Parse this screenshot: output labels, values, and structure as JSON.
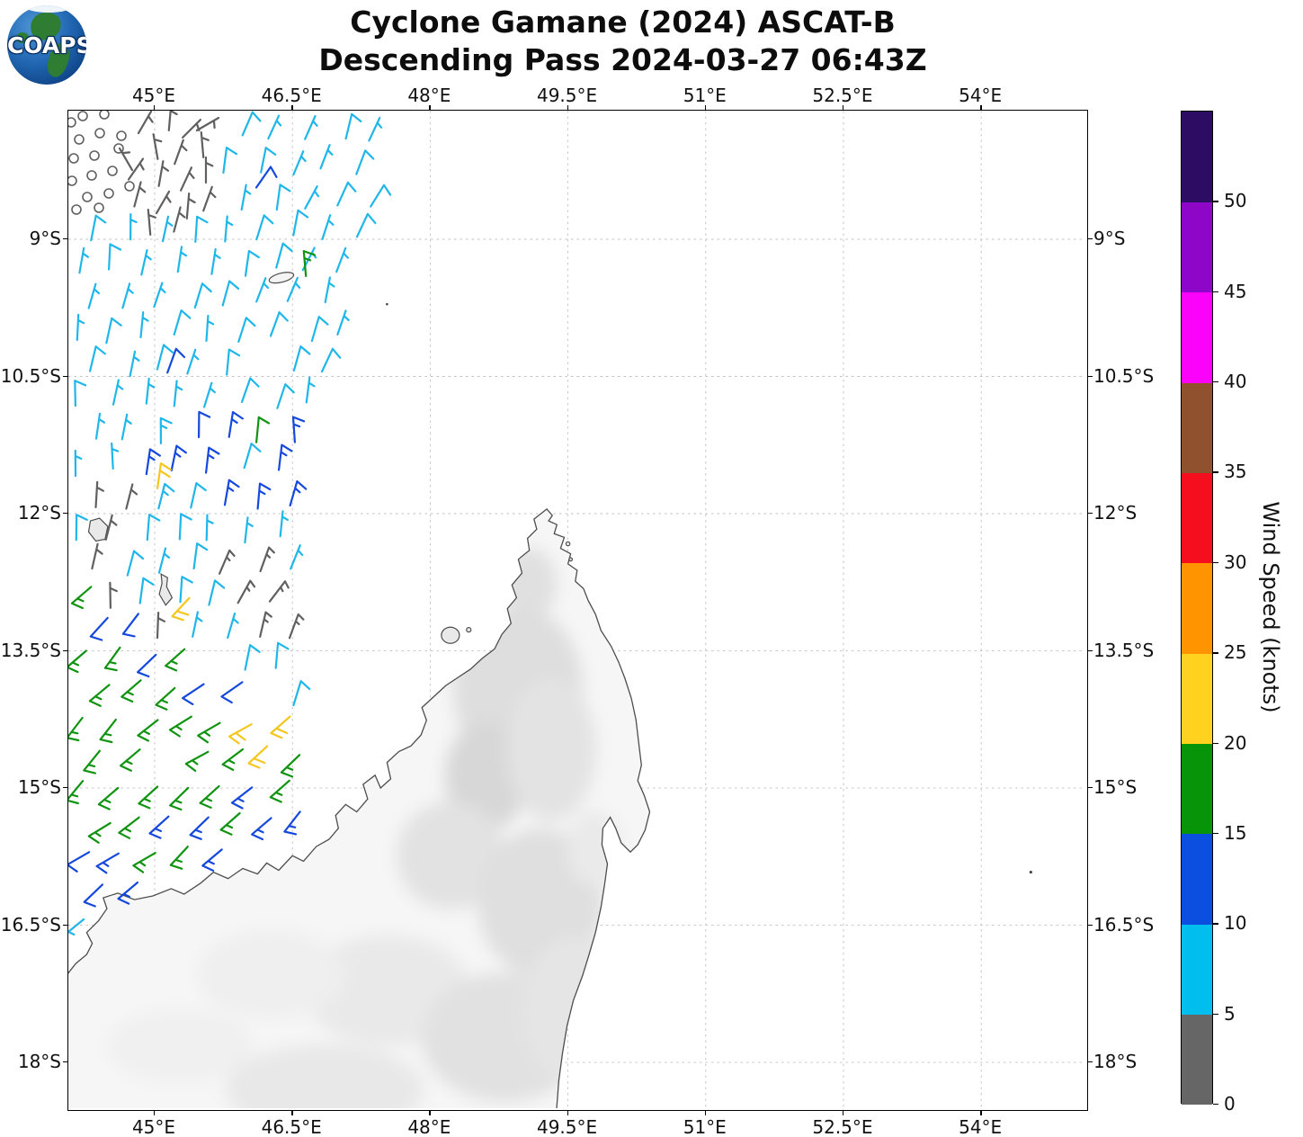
{
  "header": {
    "title_line1": "Cyclone Gamane (2024) ASCAT-B",
    "title_line2": "Descending Pass 2024-03-27 06:43Z",
    "logo_text": "COAPS"
  },
  "axes": {
    "x_tick_labels": [
      "45°E",
      "46.5°E",
      "48°E",
      "49.5°E",
      "51°E",
      "52.5°E",
      "54°E"
    ],
    "y_tick_labels": [
      "9°S",
      "10.5°S",
      "12°S",
      "13.5°S",
      "15°S",
      "16.5°S",
      "18°S"
    ],
    "x_tick_lons": [
      45,
      46.5,
      48,
      49.5,
      51,
      52.5,
      54
    ],
    "y_tick_lats": [
      -9,
      -10.5,
      -12,
      -13.5,
      -15,
      -16.5,
      -18
    ],
    "lon_range": [
      44.06,
      55.16
    ],
    "lat_range": [
      -18.55,
      -7.59
    ]
  },
  "colorbar": {
    "label": "Wind Speed (knots)",
    "tick_values": [
      0,
      5,
      10,
      15,
      20,
      25,
      30,
      35,
      40,
      45,
      50
    ],
    "segments": [
      {
        "range_kt": "0-5",
        "color": "#666666"
      },
      {
        "range_kt": "5-10",
        "color": "#00bfef"
      },
      {
        "range_kt": "10-15",
        "color": "#0b4fe0"
      },
      {
        "range_kt": "15-20",
        "color": "#089408"
      },
      {
        "range_kt": "20-25",
        "color": "#ffd21f"
      },
      {
        "range_kt": "25-30",
        "color": "#ff9400"
      },
      {
        "range_kt": "30-35",
        "color": "#f50f1e"
      },
      {
        "range_kt": "35-40",
        "color": "#90512f"
      },
      {
        "range_kt": "40-45",
        "color": "#fb02fb"
      },
      {
        "range_kt": "45-50",
        "color": "#8e06c8"
      },
      {
        "range_kt": ">50",
        "color": "#2d0c63"
      }
    ]
  },
  "chart_data": {
    "type": "wind_barb_map",
    "title": "Cyclone Gamane (2024) ASCAT-B",
    "subtitle": "Descending Pass 2024-03-27 06:43Z",
    "satellite": "ASCAT-B",
    "pass_type": "Descending",
    "valid_time": "2024-03-27 06:43Z",
    "region": "Madagascar and Mozambique Channel",
    "lon_ticks_deg_e": [
      45,
      46.5,
      48,
      49.5,
      51,
      52.5,
      54
    ],
    "lat_ticks_deg_s": [
      9,
      10.5,
      12,
      13.5,
      15,
      16.5,
      18
    ],
    "wind_speed_units": "knots",
    "speed_bins_kt": [
      0,
      5,
      10,
      15,
      20,
      25,
      30,
      35,
      40,
      45,
      50
    ],
    "swath_coverage": "satellite swath covers only the north-west part of the map (~44.1-46.6 deg E, narrowing southward, 8-17 deg S); no wind data over land or the eastern ocean",
    "wind_field_regions": [
      {
        "area": "8-12 deg S, west of ~46.6E",
        "speed_kt": "5-10",
        "wind_from": "N-NNE",
        "barb_color": "#00bfef"
      },
      {
        "area": "top-left corner ~8-9.2 deg S",
        "speed_kt": "0-5 calm (open circles and gray barbs)",
        "wind_from": "variable",
        "barb_color": "#666666"
      },
      {
        "area": "11.2-12.4 deg S, 44.8-46.6E",
        "speed_kt": "10-20, isolated 20-25",
        "wind_from": "N",
        "barb_color": "#0b4fe0"
      },
      {
        "area": "band near 12-12.8 deg S along swath edge",
        "speed_kt": "0-5",
        "wind_from": "variable",
        "barb_color": "#666666"
      },
      {
        "area": "13-16 deg S, west of 46.6E",
        "speed_kt": "15-20, isolated 20-25",
        "wind_from": "SW",
        "barb_color": "#089408"
      },
      {
        "area": "16-16.8 deg S near NW Madagascar coast",
        "speed_kt": "10-15",
        "wind_from": "SW",
        "barb_color": "#0b4fe0"
      }
    ],
    "land_features": "northern Madagascar with gray-shaded topography; small islands of the Comoros group and offshore islets outlined"
  }
}
